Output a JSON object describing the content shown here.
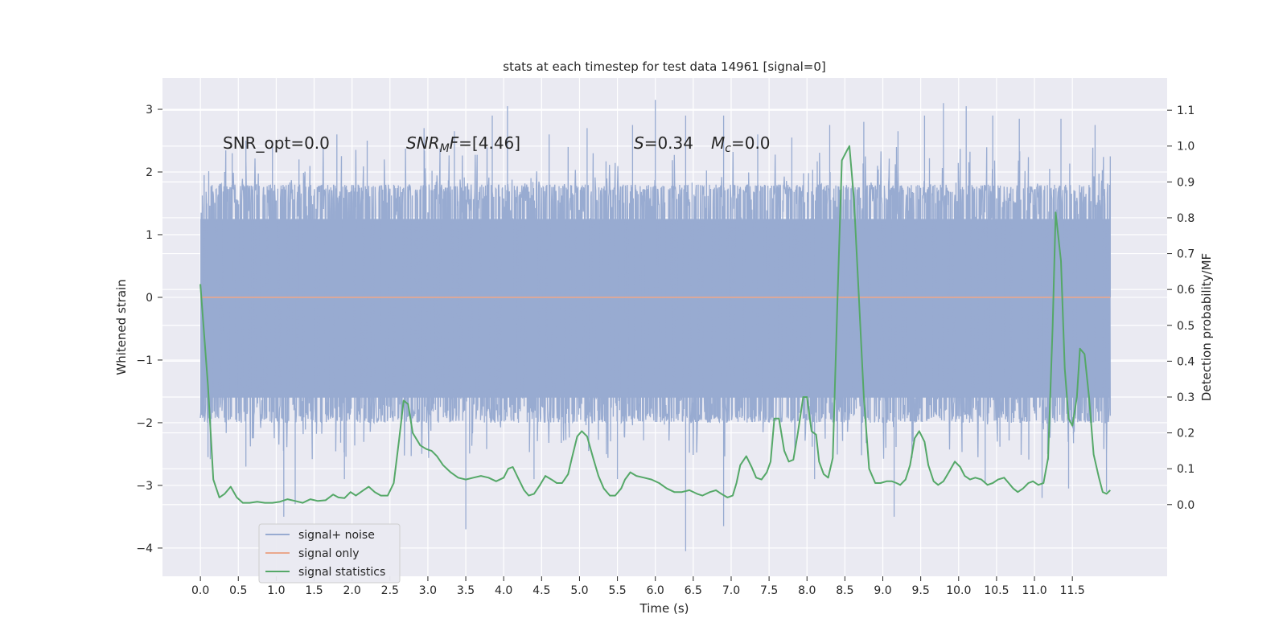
{
  "chart_data": {
    "type": "line",
    "title": "stats at each timestep for test data 14961 [signal=0]",
    "xlabel": "Time (s)",
    "ylabel": "Whitened strain",
    "y2label": "Detection probability/MF",
    "xlim": [
      -0.5,
      12.75
    ],
    "ylim": [
      -4.45,
      3.5
    ],
    "y2lim": [
      -0.2,
      1.19
    ],
    "x_ticks": [
      "0.0",
      "0.5",
      "1.0",
      "1.5",
      "2.0",
      "2.5",
      "3.0",
      "3.5",
      "4.0",
      "4.5",
      "5.0",
      "5.5",
      "6.0",
      "6.5",
      "7.0",
      "7.5",
      "8.0",
      "8.5",
      "9.0",
      "9.5",
      "10.0",
      "10.5",
      "11.0",
      "11.5"
    ],
    "y_ticks": [
      "3",
      "2",
      "1",
      "0",
      "−1",
      "−2",
      "−3",
      "−4"
    ],
    "y2_ticks": [
      "1.1",
      "1.0",
      "0.9",
      "0.8",
      "0.7",
      "0.6",
      "0.5",
      "0.4",
      "0.3",
      "0.2",
      "0.1",
      "0.0"
    ],
    "grid": true,
    "legend_position": "lower-left",
    "annotations": {
      "snr_opt": "SNR_opt=0.0",
      "snr_mf_label": "SNR",
      "snr_mf_sub": "M",
      "snr_mf_rest": "F",
      "snr_mf_value": "=[4.46]",
      "s_label": "S",
      "s_value": "=0.34",
      "mc_label": "M",
      "mc_sub": "c",
      "mc_value": "=0.0"
    },
    "series": [
      {
        "name": "signal+ noise",
        "color": "#98abd1",
        "t_range": [
          0.0,
          12.0
        ],
        "band_approx": [
          -2.0,
          1.8
        ],
        "peaks_approx": [
          [
            0.05,
            1.95
          ],
          [
            0.42,
            2.3
          ],
          [
            0.6,
            2.5
          ],
          [
            0.95,
            2.4
          ],
          [
            1.3,
            2.2
          ],
          [
            1.8,
            2.6
          ],
          [
            2.2,
            2.5
          ],
          [
            2.95,
            2.7
          ],
          [
            3.35,
            2.65
          ],
          [
            3.85,
            2.9
          ],
          [
            4.05,
            3.05
          ],
          [
            4.6,
            2.6
          ],
          [
            5.1,
            2.7
          ],
          [
            5.7,
            2.75
          ],
          [
            6.0,
            3.15
          ],
          [
            6.4,
            2.9
          ],
          [
            6.9,
            2.9
          ],
          [
            7.35,
            2.6
          ],
          [
            7.8,
            2.55
          ],
          [
            8.3,
            2.75
          ],
          [
            8.75,
            2.8
          ],
          [
            9.2,
            2.65
          ],
          [
            9.55,
            2.9
          ],
          [
            9.8,
            3.1
          ],
          [
            10.1,
            3.05
          ],
          [
            10.45,
            2.9
          ],
          [
            10.8,
            2.85
          ],
          [
            11.35,
            2.85
          ],
          [
            11.8,
            2.75
          ],
          [
            12.0,
            2.25
          ]
        ],
        "troughs_approx": [
          [
            0.1,
            -2.55
          ],
          [
            0.6,
            -2.7
          ],
          [
            1.1,
            -3.5
          ],
          [
            1.25,
            -3.3
          ],
          [
            1.9,
            -2.9
          ],
          [
            3.5,
            -3.7
          ],
          [
            4.4,
            -2.9
          ],
          [
            5.5,
            -2.9
          ],
          [
            6.4,
            -4.05
          ],
          [
            6.9,
            -3.65
          ],
          [
            8.1,
            -2.9
          ],
          [
            9.15,
            -3.5
          ],
          [
            10.35,
            -2.95
          ],
          [
            11.1,
            -3.2
          ],
          [
            11.45,
            -3.05
          ],
          [
            11.95,
            -3.1
          ]
        ]
      },
      {
        "name": "signal only",
        "color": "#eaa88d",
        "t_range": [
          0.0,
          12.0
        ],
        "value": 0.0
      },
      {
        "name": "signal statistics",
        "color": "#55a868",
        "points": [
          [
            0.0,
            0.615
          ],
          [
            0.1,
            0.33
          ],
          [
            0.17,
            0.07
          ],
          [
            0.25,
            0.02
          ],
          [
            0.32,
            0.03
          ],
          [
            0.4,
            0.05
          ],
          [
            0.48,
            0.02
          ],
          [
            0.56,
            0.005
          ],
          [
            0.65,
            0.005
          ],
          [
            0.75,
            0.008
          ],
          [
            0.85,
            0.005
          ],
          [
            0.95,
            0.005
          ],
          [
            1.05,
            0.008
          ],
          [
            1.15,
            0.015
          ],
          [
            1.25,
            0.01
          ],
          [
            1.35,
            0.005
          ],
          [
            1.45,
            0.015
          ],
          [
            1.55,
            0.01
          ],
          [
            1.65,
            0.012
          ],
          [
            1.75,
            0.028
          ],
          [
            1.82,
            0.02
          ],
          [
            1.9,
            0.018
          ],
          [
            1.98,
            0.035
          ],
          [
            2.05,
            0.025
          ],
          [
            2.15,
            0.04
          ],
          [
            2.22,
            0.05
          ],
          [
            2.3,
            0.035
          ],
          [
            2.38,
            0.025
          ],
          [
            2.47,
            0.025
          ],
          [
            2.55,
            0.06
          ],
          [
            2.62,
            0.18
          ],
          [
            2.68,
            0.29
          ],
          [
            2.74,
            0.28
          ],
          [
            2.8,
            0.2
          ],
          [
            2.9,
            0.165
          ],
          [
            2.98,
            0.155
          ],
          [
            3.05,
            0.15
          ],
          [
            3.12,
            0.135
          ],
          [
            3.2,
            0.11
          ],
          [
            3.3,
            0.09
          ],
          [
            3.4,
            0.075
          ],
          [
            3.5,
            0.07
          ],
          [
            3.6,
            0.075
          ],
          [
            3.7,
            0.08
          ],
          [
            3.8,
            0.075
          ],
          [
            3.9,
            0.065
          ],
          [
            4.0,
            0.075
          ],
          [
            4.06,
            0.1
          ],
          [
            4.12,
            0.105
          ],
          [
            4.2,
            0.07
          ],
          [
            4.27,
            0.04
          ],
          [
            4.33,
            0.025
          ],
          [
            4.4,
            0.03
          ],
          [
            4.48,
            0.055
          ],
          [
            4.55,
            0.08
          ],
          [
            4.63,
            0.07
          ],
          [
            4.7,
            0.06
          ],
          [
            4.77,
            0.06
          ],
          [
            4.85,
            0.085
          ],
          [
            4.9,
            0.13
          ],
          [
            4.97,
            0.19
          ],
          [
            5.03,
            0.205
          ],
          [
            5.1,
            0.19
          ],
          [
            5.18,
            0.13
          ],
          [
            5.25,
            0.08
          ],
          [
            5.32,
            0.045
          ],
          [
            5.4,
            0.025
          ],
          [
            5.47,
            0.025
          ],
          [
            5.55,
            0.045
          ],
          [
            5.6,
            0.07
          ],
          [
            5.67,
            0.09
          ],
          [
            5.75,
            0.08
          ],
          [
            5.85,
            0.075
          ],
          [
            5.95,
            0.07
          ],
          [
            6.05,
            0.06
          ],
          [
            6.15,
            0.045
          ],
          [
            6.25,
            0.035
          ],
          [
            6.35,
            0.035
          ],
          [
            6.45,
            0.04
          ],
          [
            6.55,
            0.03
          ],
          [
            6.62,
            0.025
          ],
          [
            6.72,
            0.035
          ],
          [
            6.8,
            0.04
          ],
          [
            6.87,
            0.03
          ],
          [
            6.95,
            0.02
          ],
          [
            7.02,
            0.025
          ],
          [
            7.07,
            0.06
          ],
          [
            7.12,
            0.11
          ],
          [
            7.2,
            0.135
          ],
          [
            7.27,
            0.105
          ],
          [
            7.33,
            0.075
          ],
          [
            7.4,
            0.07
          ],
          [
            7.47,
            0.09
          ],
          [
            7.52,
            0.12
          ],
          [
            7.57,
            0.24
          ],
          [
            7.63,
            0.24
          ],
          [
            7.7,
            0.15
          ],
          [
            7.76,
            0.12
          ],
          [
            7.82,
            0.125
          ],
          [
            7.88,
            0.2
          ],
          [
            7.95,
            0.3
          ],
          [
            8.0,
            0.3
          ],
          [
            8.06,
            0.205
          ],
          [
            8.12,
            0.195
          ],
          [
            8.16,
            0.12
          ],
          [
            8.22,
            0.085
          ],
          [
            8.28,
            0.075
          ],
          [
            8.34,
            0.13
          ],
          [
            8.4,
            0.56
          ],
          [
            8.46,
            0.96
          ],
          [
            8.52,
            0.985
          ],
          [
            8.56,
            1.0
          ],
          [
            8.62,
            0.85
          ],
          [
            8.68,
            0.6
          ],
          [
            8.75,
            0.3
          ],
          [
            8.82,
            0.1
          ],
          [
            8.9,
            0.06
          ],
          [
            8.97,
            0.06
          ],
          [
            9.05,
            0.065
          ],
          [
            9.12,
            0.065
          ],
          [
            9.18,
            0.06
          ],
          [
            9.23,
            0.055
          ],
          [
            9.3,
            0.07
          ],
          [
            9.36,
            0.11
          ],
          [
            9.42,
            0.185
          ],
          [
            9.48,
            0.205
          ],
          [
            9.55,
            0.175
          ],
          [
            9.6,
            0.11
          ],
          [
            9.67,
            0.065
          ],
          [
            9.73,
            0.055
          ],
          [
            9.8,
            0.065
          ],
          [
            9.87,
            0.09
          ],
          [
            9.95,
            0.12
          ],
          [
            10.02,
            0.105
          ],
          [
            10.08,
            0.08
          ],
          [
            10.15,
            0.07
          ],
          [
            10.22,
            0.075
          ],
          [
            10.3,
            0.07
          ],
          [
            10.38,
            0.055
          ],
          [
            10.45,
            0.06
          ],
          [
            10.52,
            0.07
          ],
          [
            10.6,
            0.075
          ],
          [
            10.66,
            0.06
          ],
          [
            10.72,
            0.045
          ],
          [
            10.78,
            0.035
          ],
          [
            10.85,
            0.045
          ],
          [
            10.92,
            0.06
          ],
          [
            10.98,
            0.065
          ],
          [
            11.05,
            0.055
          ],
          [
            11.12,
            0.06
          ],
          [
            11.18,
            0.13
          ],
          [
            11.24,
            0.5
          ],
          [
            11.28,
            0.815
          ],
          [
            11.35,
            0.68
          ],
          [
            11.4,
            0.38
          ],
          [
            11.45,
            0.24
          ],
          [
            11.5,
            0.22
          ],
          [
            11.56,
            0.3
          ],
          [
            11.6,
            0.435
          ],
          [
            11.66,
            0.42
          ],
          [
            11.72,
            0.3
          ],
          [
            11.78,
            0.14
          ],
          [
            11.85,
            0.075
          ],
          [
            11.9,
            0.035
          ],
          [
            11.95,
            0.03
          ],
          [
            12.0,
            0.04
          ]
        ]
      }
    ]
  }
}
